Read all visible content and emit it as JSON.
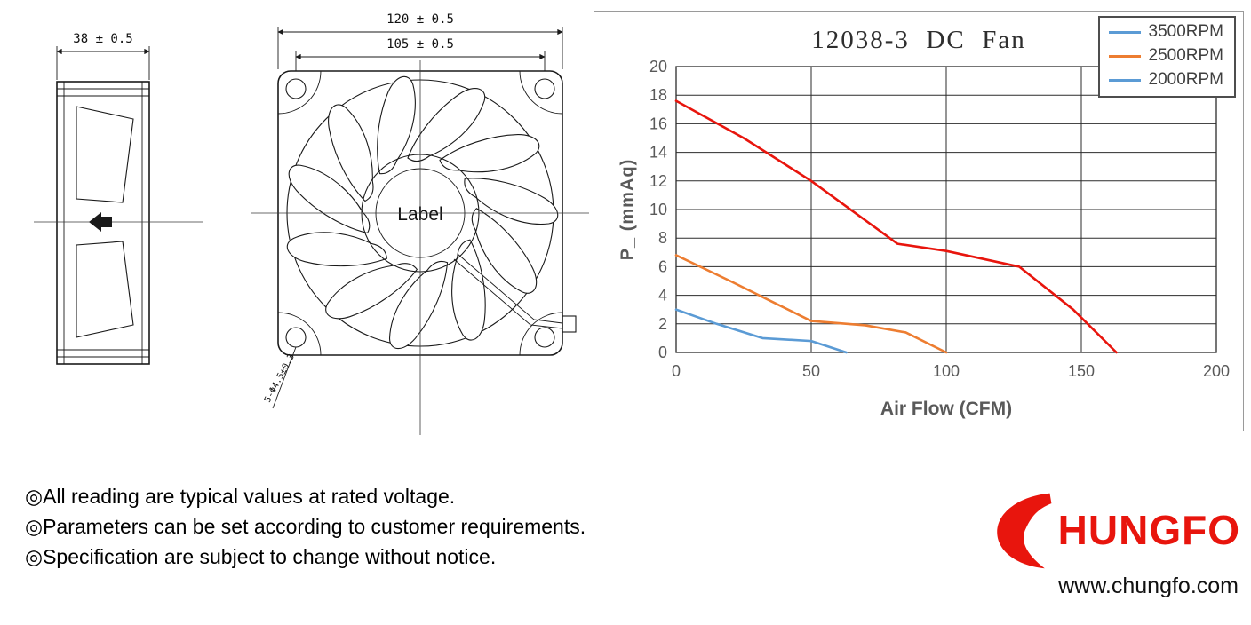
{
  "drawings": {
    "side_view": {
      "width_dimension": "38 ± 0.5"
    },
    "front_view": {
      "outer_width_dimension": "120 ± 0.5",
      "hole_pitch_dimension": "105 ± 0.5",
      "hub_label": "Label",
      "mounting_hole_note": "5-Φ4.5±0.3"
    }
  },
  "chart_data": {
    "type": "line",
    "title": "12038-3  DC  Fan",
    "xlabel": "Air Flow (CFM)",
    "ylabel": "P_ (mmAq)",
    "xlim": [
      0,
      200
    ],
    "ylim": [
      0,
      20
    ],
    "x_ticks": [
      0,
      50,
      100,
      150,
      200
    ],
    "y_ticks": [
      0,
      2,
      4,
      6,
      8,
      10,
      12,
      14,
      16,
      18,
      20
    ],
    "grid": true,
    "legend_position": "top-right",
    "series": [
      {
        "name": "3500RPM",
        "legend_color": "#5b9bd5",
        "line_color": "#e8150d",
        "points": [
          [
            0,
            17.6
          ],
          [
            25,
            15
          ],
          [
            50,
            12
          ],
          [
            82,
            7.6
          ],
          [
            100,
            7.1
          ],
          [
            127,
            6
          ],
          [
            147,
            3
          ],
          [
            163,
            0
          ]
        ]
      },
      {
        "name": "2500RPM",
        "legend_color": "#ed7d31",
        "line_color": "#ed7d31",
        "points": [
          [
            0,
            6.8
          ],
          [
            20,
            5
          ],
          [
            35,
            3.6
          ],
          [
            50,
            2.2
          ],
          [
            70,
            1.9
          ],
          [
            85,
            1.4
          ],
          [
            100,
            0
          ]
        ]
      },
      {
        "name": "2000RPM",
        "legend_color": "#5b9bd5",
        "line_color": "#5b9bd5",
        "points": [
          [
            0,
            3
          ],
          [
            15,
            2
          ],
          [
            32,
            1
          ],
          [
            50,
            0.8
          ],
          [
            63,
            0
          ]
        ]
      }
    ]
  },
  "notes": [
    "◎All reading are typical values at rated voltage.",
    "◎Parameters can be set according to customer requirements.",
    "◎Specification are subject to change without notice."
  ],
  "footer": {
    "brand_text": "HUNGFO",
    "website": "www.chungfo.com",
    "brand_color": "#e8150d"
  }
}
